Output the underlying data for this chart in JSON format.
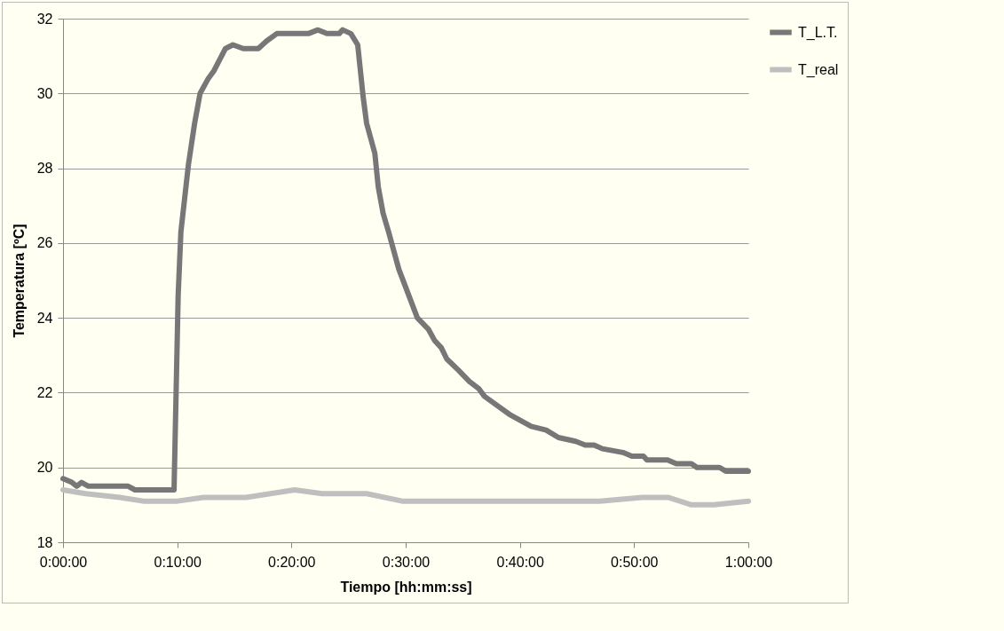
{
  "chart_data": {
    "type": "line",
    "xlabel": "Tiempo [hh:mm:ss]",
    "ylabel": "Temperatura [ºC]",
    "xlim": [
      0,
      1
    ],
    "xticks": [
      {
        "value": 0,
        "label": "0:00:00"
      },
      {
        "value": 0.1667,
        "label": "0:10:00"
      },
      {
        "value": 0.3333,
        "label": "0:20:00"
      },
      {
        "value": 0.5,
        "label": "0:30:00"
      },
      {
        "value": 0.6667,
        "label": "0:40:00"
      },
      {
        "value": 0.8333,
        "label": "0:50:00"
      },
      {
        "value": 1,
        "label": "1:00:00"
      }
    ],
    "ylim": [
      18,
      32
    ],
    "yticks": [
      18,
      20,
      22,
      24,
      26,
      28,
      30,
      32
    ],
    "grid": "y",
    "legend": "right",
    "marker": "none",
    "line_style": "solid",
    "series": [
      {
        "name": "T_L.T.",
        "color": "#777777",
        "x": [
          0,
          0.013,
          0.02,
          0.027,
          0.037,
          0.095,
          0.105,
          0.162,
          0.168,
          0.172,
          0.183,
          0.192,
          0.2,
          0.212,
          0.22,
          0.237,
          0.248,
          0.263,
          0.285,
          0.297,
          0.312,
          0.358,
          0.372,
          0.385,
          0.403,
          0.408,
          0.42,
          0.43,
          0.438,
          0.443,
          0.455,
          0.46,
          0.467,
          0.475,
          0.49,
          0.517,
          0.533,
          0.542,
          0.552,
          0.56,
          0.577,
          0.593,
          0.607,
          0.615,
          0.653,
          0.683,
          0.705,
          0.723,
          0.748,
          0.762,
          0.775,
          0.787,
          0.817,
          0.83,
          0.847,
          0.852,
          0.882,
          0.895,
          0.917,
          0.925,
          0.958,
          0.967,
          1.0
        ],
        "values": [
          19.7,
          19.6,
          19.5,
          19.6,
          19.5,
          19.5,
          19.4,
          19.4,
          24.6,
          26.3,
          28.1,
          29.2,
          30,
          30.4,
          30.6,
          31.2,
          31.3,
          31.2,
          31.2,
          31.4,
          31.6,
          31.6,
          31.7,
          31.6,
          31.6,
          31.7,
          31.6,
          31.3,
          29.9,
          29.2,
          28.4,
          27.5,
          26.8,
          26.3,
          25.3,
          24,
          23.7,
          23.4,
          23.2,
          22.9,
          22.6,
          22.3,
          22.1,
          21.9,
          21.4,
          21.1,
          21,
          20.8,
          20.7,
          20.6,
          20.6,
          20.5,
          20.4,
          20.3,
          20.3,
          20.2,
          20.2,
          20.1,
          20.1,
          20,
          20,
          19.9,
          19.9
        ]
      },
      {
        "name": "T_real",
        "color": "#bfbfbf",
        "x": [
          0,
          0.033,
          0.083,
          0.117,
          0.167,
          0.205,
          0.267,
          0.338,
          0.378,
          0.443,
          0.495,
          0.567,
          0.64,
          0.707,
          0.783,
          0.845,
          0.883,
          0.917,
          0.95,
          1.0
        ],
        "values": [
          19.4,
          19.3,
          19.2,
          19.1,
          19.1,
          19.2,
          19.2,
          19.4,
          19.3,
          19.3,
          19.1,
          19.1,
          19.1,
          19.1,
          19.1,
          19.2,
          19.2,
          19.0,
          19.0,
          19.1
        ]
      }
    ]
  }
}
